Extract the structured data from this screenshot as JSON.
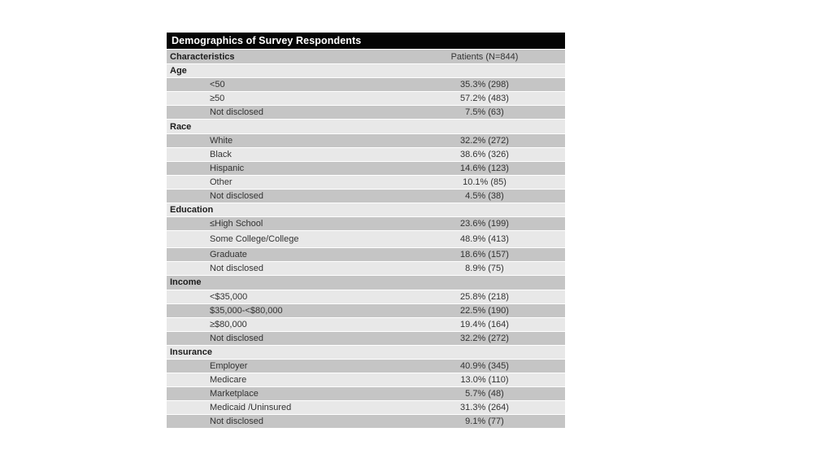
{
  "chart_data": {
    "type": "table",
    "title": "Demographics of Survey Respondents",
    "columns": [
      "Characteristics",
      "Patients (N=844)"
    ],
    "sections": [
      {
        "label": "Age",
        "rows": [
          {
            "label": "<50",
            "value": "35.3% (298)"
          },
          {
            "label": "≥50",
            "value": "57.2% (483)"
          },
          {
            "label": "Not disclosed",
            "value": "7.5% (63)"
          }
        ]
      },
      {
        "label": "Race",
        "rows": [
          {
            "label": "White",
            "value": "32.2% (272)"
          },
          {
            "label": "Black",
            "value": "38.6% (326)"
          },
          {
            "label": "Hispanic",
            "value": "14.6% (123)"
          },
          {
            "label": "Other",
            "value": "10.1% (85)"
          },
          {
            "label": "Not disclosed",
            "value": "4.5% (38)"
          }
        ]
      },
      {
        "label": "Education",
        "rows": [
          {
            "label": "≤High School",
            "value": "23.6% (199)"
          },
          {
            "label": "Some College/College",
            "value": "48.9% (413)"
          },
          {
            "label": "Graduate",
            "value": "18.6% (157)"
          },
          {
            "label": "Not disclosed",
            "value": "8.9% (75)"
          }
        ]
      },
      {
        "label": "Income",
        "rows": [
          {
            "label": "<$35,000",
            "value": "25.8% (218)"
          },
          {
            "label": "$35,000-<$80,000",
            "value": "22.5% (190)"
          },
          {
            "label": "≥$80,000",
            "value": "19.4% (164)"
          },
          {
            "label": "Not disclosed",
            "value": "32.2% (272)"
          }
        ]
      },
      {
        "label": "Insurance",
        "rows": [
          {
            "label": "Employer",
            "value": "40.9% (345)"
          },
          {
            "label": "Medicare",
            "value": "13.0% (110)"
          },
          {
            "label": "Marketplace",
            "value": "5.7% (48)"
          },
          {
            "label": "Medicaid /Uninsured",
            "value": "31.3% (264)"
          },
          {
            "label": "Not disclosed",
            "value": "9.1% (77)"
          }
        ]
      }
    ],
    "layout": {
      "legend": "none",
      "grid": "banded-rows"
    },
    "colors": {
      "title_bg": "#050505",
      "title_fg": "#ffffff",
      "band_dark": "#c5c5c5",
      "band_light": "#e8e8e8"
    }
  }
}
